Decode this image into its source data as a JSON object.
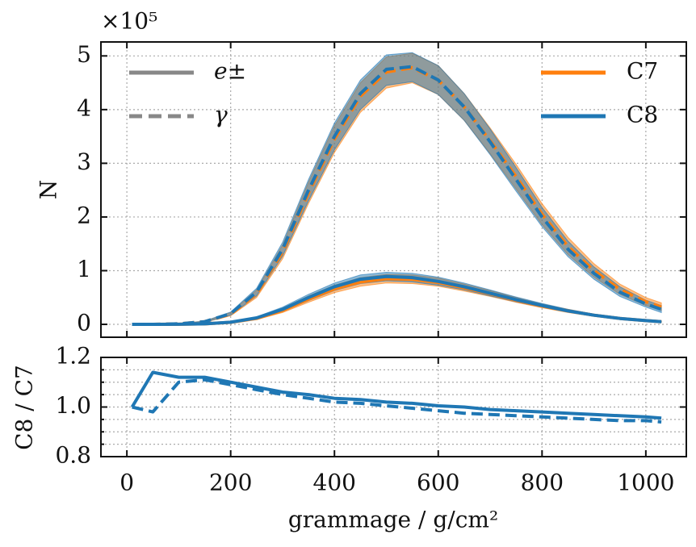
{
  "chart_data": [
    {
      "type": "line",
      "ylabel": "N",
      "y_multiplier": "×10⁵",
      "x": [
        10,
        50,
        100,
        150,
        200,
        250,
        300,
        350,
        400,
        450,
        500,
        550,
        600,
        650,
        700,
        750,
        800,
        850,
        900,
        950,
        1000,
        1030
      ],
      "xlim": [
        -50,
        1078
      ],
      "ylim": [
        -0.24,
        5.26
      ],
      "xticks": [
        0,
        200,
        400,
        600,
        800,
        1000
      ],
      "yticks": [
        0,
        1,
        2,
        3,
        4,
        5
      ],
      "grid": true,
      "styles": [
        {
          "label": "e±",
          "dash": false
        },
        {
          "label": "γ",
          "dash": true
        }
      ],
      "series": [
        {
          "name": "C7",
          "color": "#ff7f0e",
          "lines": [
            {
              "style": 0,
              "values": [
                0,
                0,
                0.002,
                0.01,
                0.038,
                0.11,
                0.26,
                0.47,
                0.66,
                0.79,
                0.85,
                0.84,
                0.78,
                0.68,
                0.57,
                0.45,
                0.34,
                0.25,
                0.17,
                0.11,
                0.07,
                0.05
              ],
              "lower": [
                0,
                0,
                0.001,
                0.008,
                0.03,
                0.09,
                0.22,
                0.41,
                0.59,
                0.71,
                0.77,
                0.76,
                0.71,
                0.62,
                0.52,
                0.41,
                0.31,
                0.22,
                0.15,
                0.1,
                0.06,
                0.04
              ],
              "upper": [
                0,
                0,
                0.003,
                0.013,
                0.046,
                0.13,
                0.3,
                0.53,
                0.73,
                0.87,
                0.93,
                0.92,
                0.86,
                0.75,
                0.63,
                0.5,
                0.38,
                0.28,
                0.19,
                0.13,
                0.08,
                0.06
              ]
            },
            {
              "style": 1,
              "values": [
                0,
                0,
                0.01,
                0.05,
                0.19,
                0.57,
                1.35,
                2.45,
                3.45,
                4.25,
                4.7,
                4.78,
                4.55,
                4.05,
                3.42,
                2.75,
                2.05,
                1.45,
                1.0,
                0.65,
                0.42,
                0.32
              ],
              "lower": [
                0,
                0,
                0.005,
                0.04,
                0.16,
                0.5,
                1.22,
                2.25,
                3.2,
                3.95,
                4.4,
                4.5,
                4.28,
                3.8,
                3.18,
                2.52,
                1.86,
                1.3,
                0.88,
                0.56,
                0.35,
                0.26
              ],
              "upper": [
                0,
                0,
                0.015,
                0.06,
                0.22,
                0.64,
                1.48,
                2.65,
                3.7,
                4.5,
                4.98,
                5.05,
                4.82,
                4.3,
                3.66,
                2.98,
                2.25,
                1.62,
                1.13,
                0.75,
                0.5,
                0.4
              ]
            }
          ]
        },
        {
          "name": "C8",
          "color": "#1f77b4",
          "lines": [
            {
              "style": 0,
              "values": [
                0,
                0,
                0.002,
                0.01,
                0.04,
                0.12,
                0.28,
                0.5,
                0.7,
                0.84,
                0.89,
                0.87,
                0.8,
                0.7,
                0.58,
                0.46,
                0.35,
                0.25,
                0.17,
                0.11,
                0.07,
                0.05
              ],
              "lower": [
                0,
                0,
                0.001,
                0.008,
                0.032,
                0.1,
                0.24,
                0.44,
                0.63,
                0.76,
                0.81,
                0.79,
                0.73,
                0.64,
                0.53,
                0.42,
                0.32,
                0.23,
                0.15,
                0.1,
                0.06,
                0.04
              ],
              "upper": [
                0,
                0,
                0.003,
                0.013,
                0.048,
                0.14,
                0.32,
                0.56,
                0.77,
                0.92,
                0.97,
                0.95,
                0.88,
                0.77,
                0.64,
                0.51,
                0.39,
                0.28,
                0.19,
                0.13,
                0.08,
                0.06
              ]
            },
            {
              "style": 1,
              "values": [
                0,
                0,
                0.01,
                0.05,
                0.2,
                0.6,
                1.4,
                2.5,
                3.5,
                4.3,
                4.75,
                4.8,
                4.55,
                4.05,
                3.4,
                2.7,
                2.0,
                1.4,
                0.95,
                0.6,
                0.38,
                0.28
              ],
              "lower": [
                0,
                0,
                0.005,
                0.04,
                0.17,
                0.53,
                1.27,
                2.3,
                3.25,
                4.0,
                4.45,
                4.52,
                4.28,
                3.8,
                3.16,
                2.48,
                1.82,
                1.26,
                0.84,
                0.52,
                0.32,
                0.22
              ],
              "upper": [
                0,
                0,
                0.015,
                0.06,
                0.23,
                0.67,
                1.53,
                2.7,
                3.75,
                4.55,
                5.02,
                5.06,
                4.82,
                4.3,
                3.64,
                2.92,
                2.18,
                1.55,
                1.07,
                0.7,
                0.45,
                0.35
              ]
            }
          ]
        }
      ]
    },
    {
      "type": "line",
      "xlabel": "grammage / g/cm²",
      "ylabel": "C8 / C7",
      "x": [
        10,
        50,
        100,
        150,
        200,
        250,
        300,
        350,
        400,
        450,
        500,
        550,
        600,
        650,
        700,
        750,
        800,
        850,
        900,
        950,
        1000,
        1030
      ],
      "xlim": [
        -50,
        1078
      ],
      "ylim": [
        0.8,
        1.2
      ],
      "xticks": [
        0,
        200,
        400,
        600,
        800,
        1000
      ],
      "yticks": [
        0.8,
        {
          "value": 1,
          "label": "1.0"
        },
        1.2
      ],
      "yminor": [
        0.85,
        0.9,
        0.95,
        1.05,
        1.1,
        1.15
      ],
      "grid": true,
      "series": [
        {
          "color": "#1f77b4",
          "dash": false,
          "values": [
            1.0,
            1.14,
            1.12,
            1.12,
            1.1,
            1.08,
            1.06,
            1.05,
            1.035,
            1.03,
            1.02,
            1.015,
            1.005,
            1.0,
            0.99,
            0.985,
            0.98,
            0.975,
            0.97,
            0.965,
            0.96,
            0.955
          ]
        },
        {
          "color": "#1f77b4",
          "dash": true,
          "values": [
            1.0,
            0.98,
            1.1,
            1.11,
            1.09,
            1.07,
            1.05,
            1.035,
            1.02,
            1.015,
            1.005,
            0.995,
            0.985,
            0.975,
            0.97,
            0.965,
            0.96,
            0.955,
            0.95,
            0.945,
            0.945,
            0.94
          ]
        }
      ]
    }
  ]
}
